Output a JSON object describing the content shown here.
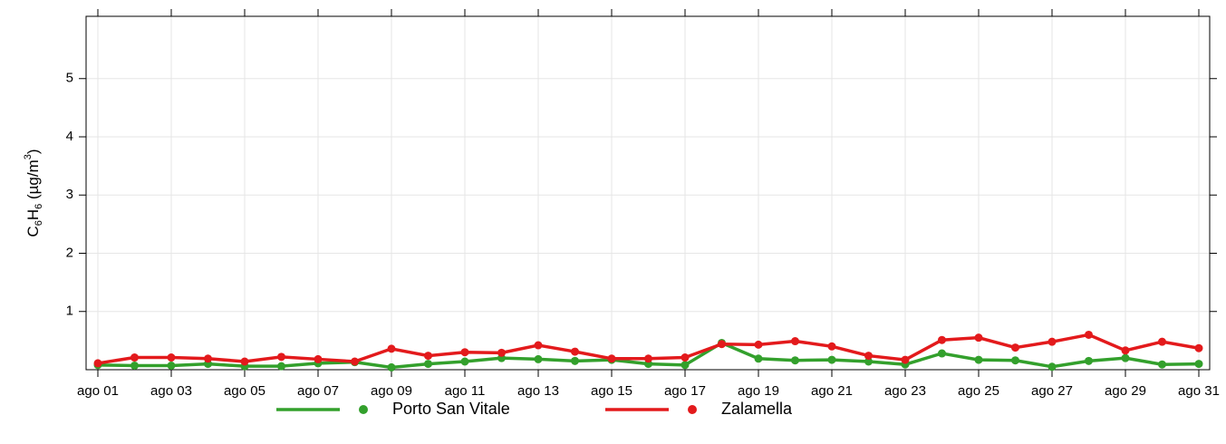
{
  "chart_data": {
    "type": "line",
    "y_label": [
      "C",
      "6",
      "H",
      "6",
      " (µg/m",
      "3",
      ")"
    ],
    "categories": [
      "ago 01",
      null,
      "ago 03",
      null,
      "ago 05",
      null,
      "ago 07",
      null,
      "ago 09",
      null,
      "ago 11",
      null,
      "ago 13",
      null,
      "ago 15",
      null,
      "ago 17",
      null,
      "ago 19",
      null,
      "ago 21",
      null,
      "ago 23",
      null,
      "ago 25",
      null,
      "ago 27",
      null,
      "ago 29",
      null,
      "ago 31"
    ],
    "series": [
      {
        "name": "Porto San Vitale",
        "color": "#33a02c",
        "values": [
          0.08,
          0.07,
          0.07,
          0.1,
          0.06,
          0.06,
          0.11,
          0.13,
          0.04,
          0.1,
          0.14,
          0.2,
          0.18,
          0.15,
          0.17,
          0.1,
          0.08,
          0.46,
          0.19,
          0.16,
          0.17,
          0.14,
          0.09,
          0.28,
          0.17,
          0.16,
          0.05,
          0.15,
          0.2,
          0.09,
          0.1
        ]
      },
      {
        "name": "Zalamella",
        "color": "#e31a1c",
        "values": [
          0.11,
          0.21,
          0.21,
          0.19,
          0.14,
          0.22,
          0.18,
          0.14,
          0.36,
          0.24,
          0.3,
          0.29,
          0.42,
          0.31,
          0.19,
          0.19,
          0.21,
          0.44,
          0.43,
          0.49,
          0.4,
          0.24,
          0.17,
          0.51,
          0.55,
          0.38,
          0.48,
          0.6,
          0.33,
          0.48,
          0.37
        ]
      }
    ],
    "ylim": [
      0,
      6.07
    ],
    "yticks": [
      1,
      2,
      3,
      4,
      5
    ],
    "grid": true
  }
}
